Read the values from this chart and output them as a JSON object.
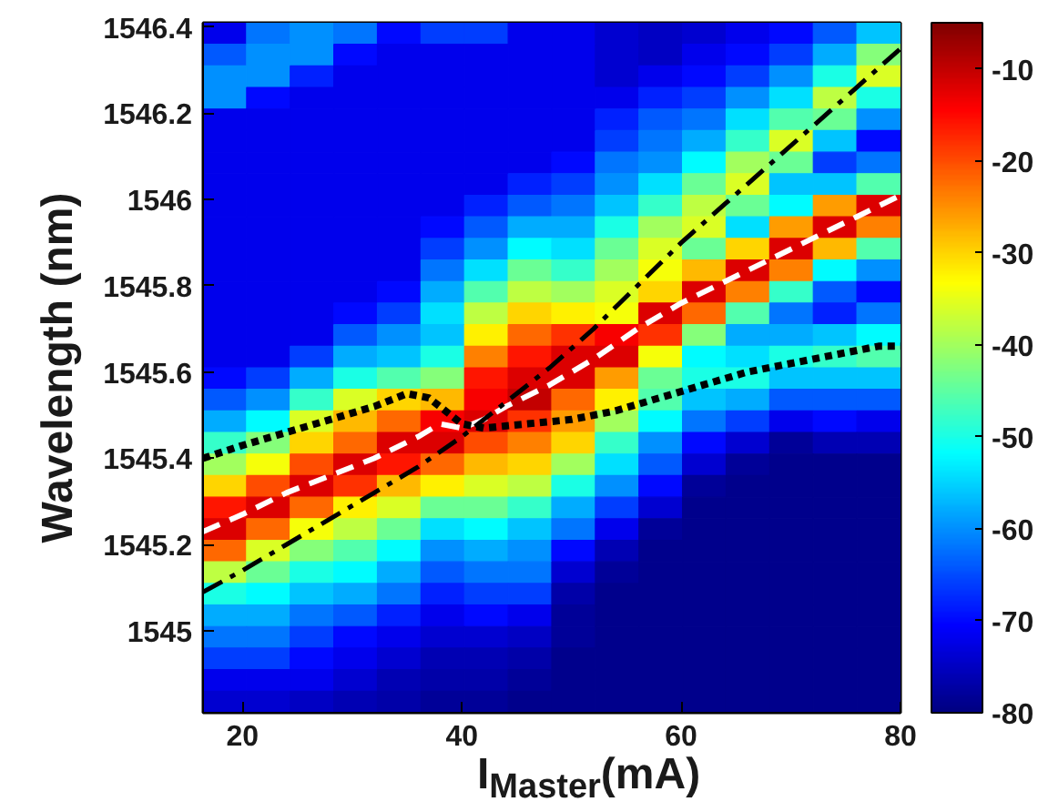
{
  "chart_data": {
    "type": "heatmap",
    "xlabel": "I$_{Master}$(mA)",
    "ylabel": "Wavelength (nm)",
    "xlim": [
      16.4,
      80
    ],
    "ylim": [
      1544.81,
      1546.41
    ],
    "xticks": [
      20,
      40,
      60,
      80
    ],
    "yticks": [
      1545,
      1545.2,
      1545.4,
      1545.6,
      1545.8,
      1546,
      1546.2,
      1546.4
    ],
    "clim": [
      -80,
      -5
    ],
    "cticks": [
      -80,
      -70,
      -60,
      -50,
      -40,
      -30,
      -20,
      -10
    ],
    "cells": [
      [
        -72,
        -62,
        -60,
        -62,
        -70,
        -66,
        -66,
        -72,
        -72,
        -74,
        -75,
        -74,
        -72,
        -70,
        -64,
        -56
      ],
      [
        -64,
        -60,
        -60,
        -70,
        -72,
        -72,
        -72,
        -72,
        -72,
        -74,
        -75,
        -72,
        -70,
        -66,
        -58,
        -42
      ],
      [
        -60,
        -60,
        -68,
        -72,
        -72,
        -72,
        -72,
        -72,
        -72,
        -74,
        -72,
        -70,
        -66,
        -60,
        -50,
        -36
      ],
      [
        -60,
        -70,
        -72,
        -72,
        -72,
        -72,
        -72,
        -72,
        -72,
        -72,
        -68,
        -66,
        -60,
        -54,
        -38,
        -50
      ],
      [
        -72,
        -72,
        -72,
        -72,
        -72,
        -72,
        -72,
        -72,
        -72,
        -68,
        -64,
        -62,
        -54,
        -46,
        -44,
        -60
      ],
      [
        -72,
        -72,
        -72,
        -72,
        -72,
        -72,
        -72,
        -72,
        -72,
        -66,
        -62,
        -58,
        -48,
        -36,
        -56,
        -70
      ],
      [
        -72,
        -72,
        -72,
        -72,
        -72,
        -72,
        -72,
        -72,
        -70,
        -62,
        -60,
        -52,
        -40,
        -44,
        -66,
        -62
      ],
      [
        -72,
        -72,
        -72,
        -72,
        -72,
        -72,
        -72,
        -68,
        -66,
        -60,
        -54,
        -44,
        -36,
        -56,
        -56,
        -46
      ],
      [
        -72,
        -72,
        -72,
        -72,
        -72,
        -72,
        -68,
        -64,
        -62,
        -56,
        -48,
        -38,
        -44,
        -52,
        -26,
        -12
      ],
      [
        -72,
        -72,
        -72,
        -72,
        -72,
        -70,
        -64,
        -58,
        -58,
        -50,
        -40,
        -36,
        -54,
        -26,
        -12,
        -24
      ],
      [
        -72,
        -72,
        -72,
        -72,
        -72,
        -66,
        -60,
        -52,
        -54,
        -44,
        -36,
        -44,
        -30,
        -12,
        -28,
        -46
      ],
      [
        -72,
        -72,
        -72,
        -72,
        -72,
        -62,
        -54,
        -44,
        -48,
        -40,
        -34,
        -28,
        -12,
        -24,
        -52,
        -60
      ],
      [
        -72,
        -72,
        -72,
        -72,
        -70,
        -58,
        -46,
        -38,
        -40,
        -36,
        -30,
        -12,
        -24,
        -48,
        -64,
        -70
      ],
      [
        -72,
        -72,
        -72,
        -70,
        -66,
        -54,
        -38,
        -30,
        -32,
        -34,
        -12,
        -22,
        -46,
        -62,
        -68,
        -62
      ],
      [
        -72,
        -72,
        -72,
        -64,
        -60,
        -56,
        -32,
        -22,
        -18,
        -14,
        -18,
        -42,
        -58,
        -58,
        -56,
        -52
      ],
      [
        -72,
        -72,
        -66,
        -58,
        -56,
        -50,
        -24,
        -16,
        -12,
        -12,
        -34,
        -52,
        -54,
        -50,
        -48,
        -46
      ],
      [
        -70,
        -66,
        -58,
        -50,
        -46,
        -42,
        -16,
        -12,
        -12,
        -26,
        -44,
        -50,
        -50,
        -56,
        -56,
        -56
      ],
      [
        -64,
        -60,
        -48,
        -36,
        -30,
        -28,
        -14,
        -10,
        -22,
        -32,
        -46,
        -56,
        -58,
        -64,
        -64,
        -64
      ],
      [
        -58,
        -52,
        -36,
        -28,
        -22,
        -14,
        -12,
        -18,
        -26,
        -40,
        -52,
        -62,
        -66,
        -72,
        -70,
        -72
      ],
      [
        -48,
        -42,
        -30,
        -22,
        -12,
        -12,
        -20,
        -24,
        -30,
        -48,
        -60,
        -70,
        -74,
        -78,
        -76,
        -76
      ],
      [
        -40,
        -34,
        -20,
        -12,
        -16,
        -22,
        -28,
        -30,
        -40,
        -54,
        -64,
        -74,
        -78,
        -79,
        -79,
        -79
      ],
      [
        -30,
        -20,
        -12,
        -18,
        -28,
        -32,
        -36,
        -38,
        -50,
        -60,
        -70,
        -78,
        -79,
        -79,
        -79,
        -79
      ],
      [
        -16,
        -12,
        -22,
        -32,
        -36,
        -44,
        -44,
        -48,
        -58,
        -66,
        -74,
        -79,
        -79,
        -79,
        -79,
        -79
      ],
      [
        -12,
        -22,
        -34,
        -38,
        -44,
        -54,
        -52,
        -56,
        -62,
        -72,
        -78,
        -79,
        -79,
        -79,
        -79,
        -79
      ],
      [
        -22,
        -36,
        -42,
        -46,
        -52,
        -60,
        -58,
        -60,
        -70,
        -76,
        -79,
        -79,
        -79,
        -79,
        -79,
        -79
      ],
      [
        -38,
        -44,
        -50,
        -52,
        -58,
        -64,
        -62,
        -62,
        -74,
        -78,
        -79,
        -79,
        -79,
        -79,
        -79,
        -79
      ],
      [
        -50,
        -52,
        -56,
        -58,
        -62,
        -68,
        -66,
        -66,
        -77,
        -79,
        -79,
        -79,
        -79,
        -79,
        -79,
        -79
      ],
      [
        -58,
        -58,
        -62,
        -64,
        -68,
        -72,
        -70,
        -72,
        -78,
        -79,
        -79,
        -79,
        -79,
        -79,
        -79,
        -79
      ],
      [
        -62,
        -62,
        -66,
        -70,
        -72,
        -74,
        -74,
        -75,
        -78,
        -79,
        -79,
        -79,
        -79,
        -79,
        -79,
        -79
      ],
      [
        -66,
        -66,
        -70,
        -72,
        -74,
        -76,
        -76,
        -77,
        -79,
        -79,
        -79,
        -79,
        -79,
        -79,
        -79,
        -79
      ],
      [
        -72,
        -72,
        -72,
        -74,
        -76,
        -77,
        -77,
        -78,
        -79,
        -79,
        -79,
        -79,
        -79,
        -79,
        -79,
        -79
      ],
      [
        -74,
        -74,
        -75,
        -76,
        -77,
        -78,
        -78,
        -79,
        -79,
        -79,
        -79,
        -79,
        -79,
        -79,
        -79,
        -79
      ]
    ],
    "series": [
      {
        "type": "line",
        "color": "#ffffff",
        "line_style": "dashed",
        "x": [
          16.4,
          20,
          24,
          28,
          32,
          36,
          38,
          40,
          42,
          44,
          48,
          52,
          56,
          60,
          64,
          68,
          72,
          76,
          80
        ],
        "values": [
          1545.23,
          1545.27,
          1545.32,
          1545.36,
          1545.4,
          1545.45,
          1545.48,
          1545.47,
          1545.49,
          1545.52,
          1545.57,
          1545.63,
          1545.7,
          1545.76,
          1545.81,
          1545.86,
          1545.91,
          1545.96,
          1546.01
        ]
      },
      {
        "type": "line",
        "color": "#000000",
        "line_style": "dashdot",
        "x": [
          16.4,
          20,
          24,
          28,
          32,
          36,
          40,
          44,
          48,
          52,
          56,
          60,
          64,
          68,
          72,
          76,
          80
        ],
        "values": [
          1545.09,
          1545.14,
          1545.2,
          1545.26,
          1545.32,
          1545.38,
          1545.45,
          1545.53,
          1545.61,
          1545.7,
          1545.8,
          1545.9,
          1545.99,
          1546.08,
          1546.17,
          1546.26,
          1546.35
        ]
      },
      {
        "type": "line",
        "color": "#000000",
        "line_style": "dotted",
        "x": [
          16.4,
          20,
          24,
          28,
          32,
          35,
          37,
          38.5,
          40,
          42,
          46,
          50,
          54,
          58,
          62,
          66,
          70,
          74,
          78,
          80
        ],
        "values": [
          1545.4,
          1545.43,
          1545.46,
          1545.49,
          1545.52,
          1545.55,
          1545.54,
          1545.51,
          1545.48,
          1545.47,
          1545.48,
          1545.49,
          1545.51,
          1545.54,
          1545.57,
          1545.6,
          1545.62,
          1545.64,
          1545.66,
          1545.66
        ]
      }
    ]
  }
}
